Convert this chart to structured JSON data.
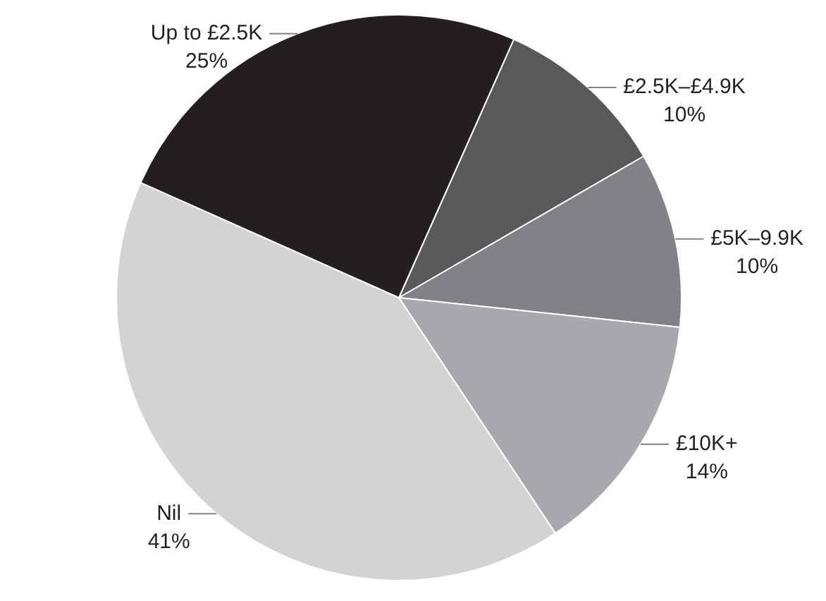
{
  "chart_data": {
    "type": "pie",
    "categories": [
      "£2.5K–£4.9K",
      "£5K–9.9K",
      "£10K+",
      "Nil",
      "Up to £2.5K"
    ],
    "values": [
      10,
      10,
      14,
      41,
      25
    ],
    "colors": [
      "#58595b",
      "#808285",
      "#a7a9ac",
      "#d1d3d4",
      "#231f20"
    ],
    "value_labels": [
      "10%",
      "10%",
      "14%",
      "41%",
      "25%"
    ]
  }
}
